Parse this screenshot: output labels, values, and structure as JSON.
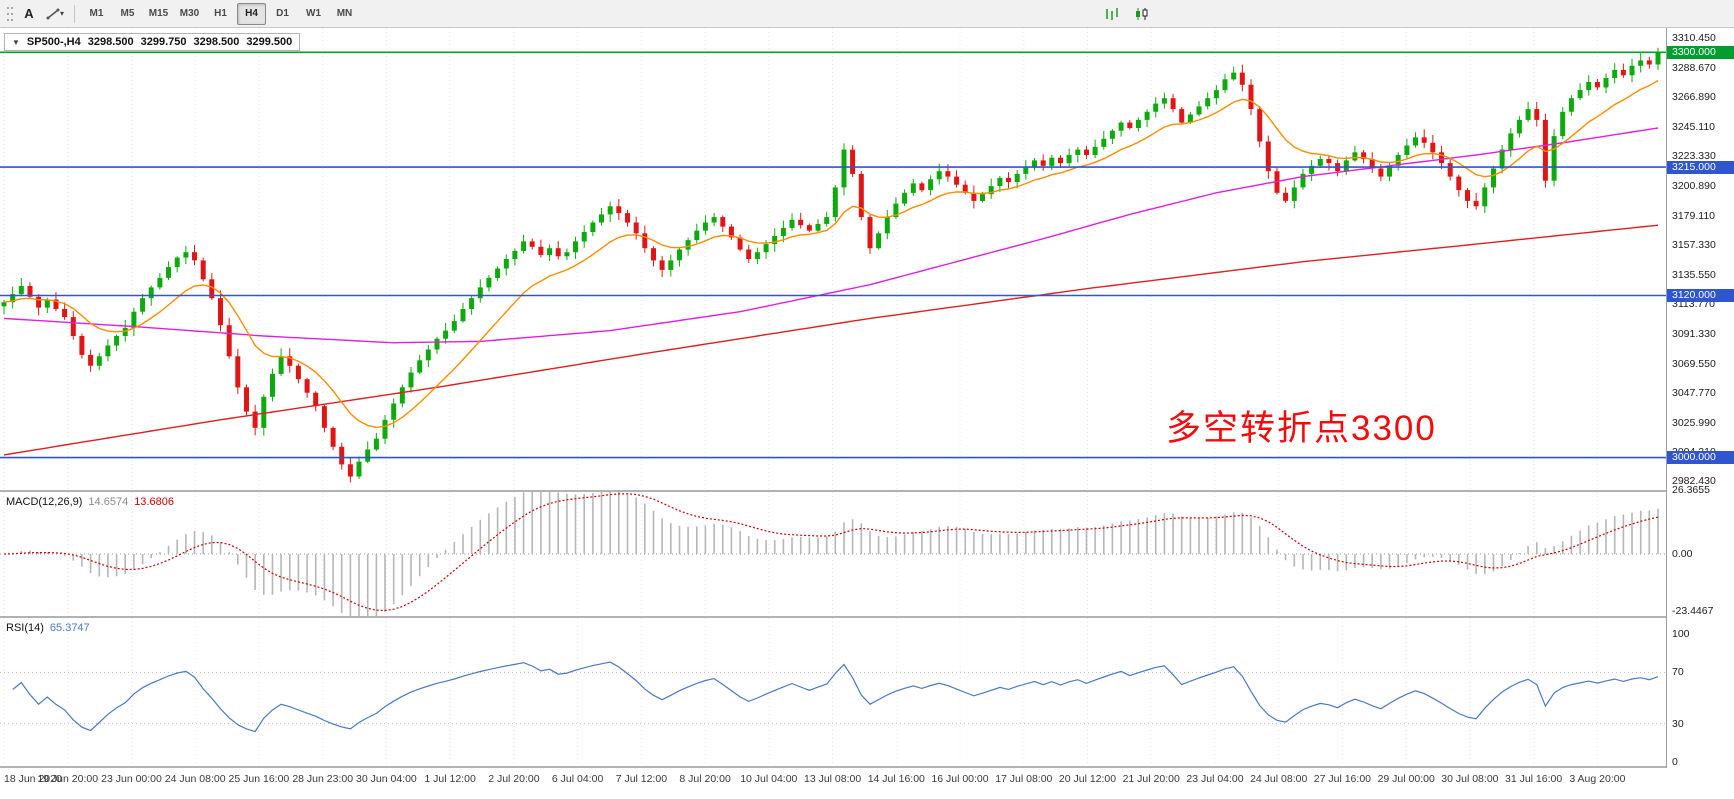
{
  "toolbar": {
    "annotate_label": "A",
    "timeframes": [
      "M1",
      "M5",
      "M15",
      "M30",
      "H1",
      "H4",
      "D1",
      "W1",
      "MN"
    ],
    "active_timeframe": "H4"
  },
  "icons": {
    "chevron_down": "▾",
    "one_click_arrow": "▼"
  },
  "chart_header": {
    "symbol": "SP500-,H4",
    "open": "3298.500",
    "high": "3299.750",
    "low": "3298.500",
    "close": "3299.500"
  },
  "annotation": {
    "text": "多空转折点3300",
    "color": "#f40b0b"
  },
  "price_axis": {
    "labels": [
      "3310.450",
      "3288.670",
      "3266.890",
      "3245.110",
      "3223.330",
      "3200.890",
      "3179.110",
      "3157.330",
      "3135.550",
      "3113.770",
      "3091.330",
      "3069.550",
      "3047.770",
      "3025.990",
      "3004.210",
      "2982.430"
    ]
  },
  "hlines": [
    {
      "price": 3300,
      "color": "#009e2f",
      "badge_label": "3300.000"
    },
    {
      "price": 3215,
      "color": "#2f55cf",
      "badge_label": "3215.000"
    },
    {
      "price": 3120,
      "color": "#2f55cf",
      "badge_label": "3120.000"
    },
    {
      "price": 3000,
      "color": "#2f55cf",
      "badge_label": "3000.000"
    }
  ],
  "time_axis": {
    "labels": [
      "18 Jun 2020",
      "19 Jun 20:00",
      "23 Jun 00:00",
      "24 Jun 08:00",
      "25 Jun 16:00",
      "28 Jun 23:00",
      "30 Jun 04:00",
      "1 Jul 12:00",
      "2 Jul 20:00",
      "6 Jul 04:00",
      "7 Jul 12:00",
      "8 Jul 20:00",
      "10 Jul 04:00",
      "13 Jul 08:00",
      "14 Jul 16:00",
      "16 Jul 00:00",
      "17 Jul 08:00",
      "20 Jul 12:00",
      "21 Jul 20:00",
      "23 Jul 04:00",
      "24 Jul 08:00",
      "27 Jul 16:00",
      "29 Jul 00:00",
      "30 Jul 08:00",
      "31 Jul 16:00",
      "3 Aug 20:00"
    ]
  },
  "macd_panel": {
    "label": "MACD(12,26,9)",
    "value_main": "14.6574",
    "value_signal": "13.6806",
    "axis_labels": [
      "26.3655",
      "0.00",
      "-23.4467"
    ],
    "axis_values": [
      26.3655,
      0,
      -23.4467
    ]
  },
  "rsi_panel": {
    "label": "RSI(14)",
    "value": "65.3747",
    "axis_labels": [
      "100",
      "70",
      "30",
      "0"
    ],
    "levels": [
      70,
      30
    ]
  },
  "colors": {
    "up": "#0caa0c",
    "down": "#e01616",
    "ma_fast": "#ff8c00",
    "ma_mid": "#e020e0",
    "ma_slow": "#e02020",
    "macd_hist": "#b6b6b6",
    "macd_signal": "#cc0000",
    "rsi": "#4a78c8",
    "grid": "#e7e7e7"
  },
  "chart_data": {
    "type": "candlestick",
    "title": "SP500-,H4 3298.500 3299.750 3298.500 3299.500",
    "symbol": "SP500-",
    "timeframe": "H4",
    "ohlc_current": {
      "open": 3298.5,
      "high": 3299.75,
      "low": 3298.5,
      "close": 3299.5
    },
    "ylim": [
      2976,
      3318
    ],
    "key_levels": {
      "green": [
        3300
      ],
      "blue": [
        3215,
        3120,
        3000
      ]
    },
    "first_open": 3112,
    "wick": 5,
    "closes": [
      3115,
      3121,
      3127,
      3119,
      3111,
      3117,
      3110,
      3104,
      3090,
      3076,
      3068,
      3075,
      3083,
      3090,
      3096,
      3108,
      3118,
      3126,
      3133,
      3141,
      3148,
      3152,
      3146,
      3132,
      3118,
      3098,
      3075,
      3052,
      3034,
      3022,
      3045,
      3062,
      3075,
      3068,
      3058,
      3048,
      3038,
      3022,
      3008,
      2995,
      2986,
      2997,
      3006,
      3014,
      3028,
      3040,
      3052,
      3063,
      3072,
      3080,
      3088,
      3094,
      3101,
      3110,
      3118,
      3126,
      3133,
      3140,
      3147,
      3153,
      3160,
      3156,
      3150,
      3155,
      3149,
      3152,
      3160,
      3167,
      3174,
      3180,
      3186,
      3181,
      3174,
      3166,
      3155,
      3146,
      3139,
      3146,
      3154,
      3161,
      3168,
      3174,
      3178,
      3171,
      3163,
      3154,
      3147,
      3152,
      3158,
      3164,
      3170,
      3176,
      3172,
      3168,
      3173,
      3178,
      3200,
      3228,
      3210,
      3178,
      3155,
      3166,
      3178,
      3188,
      3196,
      3203,
      3198,
      3206,
      3212,
      3208,
      3202,
      3196,
      3190,
      3195,
      3201,
      3207,
      3204,
      3210,
      3215,
      3220,
      3216,
      3222,
      3218,
      3224,
      3228,
      3224,
      3230,
      3236,
      3242,
      3248,
      3244,
      3250,
      3256,
      3262,
      3266,
      3258,
      3248,
      3254,
      3260,
      3266,
      3272,
      3280,
      3285,
      3276,
      3258,
      3234,
      3212,
      3196,
      3190,
      3200,
      3210,
      3216,
      3221,
      3218,
      3212,
      3220,
      3226,
      3221,
      3214,
      3208,
      3216,
      3224,
      3231,
      3237,
      3233,
      3226,
      3218,
      3208,
      3198,
      3190,
      3186,
      3200,
      3214,
      3228,
      3240,
      3250,
      3258,
      3250,
      3205,
      3238,
      3256,
      3266,
      3272,
      3278,
      3274,
      3281,
      3287,
      3283,
      3290,
      3294,
      3291,
      3299.5
    ],
    "moving_averages": {
      "fast_ema_period": 12,
      "mid_anchors": [
        [
          0,
          3103
        ],
        [
          15,
          3097
        ],
        [
          30,
          3090
        ],
        [
          45,
          3085
        ],
        [
          55,
          3086
        ],
        [
          70,
          3094
        ],
        [
          85,
          3108
        ],
        [
          100,
          3128
        ],
        [
          110,
          3145
        ],
        [
          120,
          3162
        ],
        [
          130,
          3180
        ],
        [
          140,
          3196
        ],
        [
          150,
          3208
        ],
        [
          160,
          3216
        ],
        [
          170,
          3224
        ],
        [
          180,
          3233
        ],
        [
          191,
          3244
        ]
      ],
      "slow_anchors": [
        [
          0,
          3002
        ],
        [
          25,
          3028
        ],
        [
          50,
          3052
        ],
        [
          75,
          3078
        ],
        [
          100,
          3103
        ],
        [
          125,
          3125
        ],
        [
          150,
          3145
        ],
        [
          170,
          3158
        ],
        [
          191,
          3172
        ]
      ]
    },
    "macd": {
      "fast": 12,
      "slow": 26,
      "signal": 9
    },
    "rsi": {
      "period": 14
    }
  }
}
